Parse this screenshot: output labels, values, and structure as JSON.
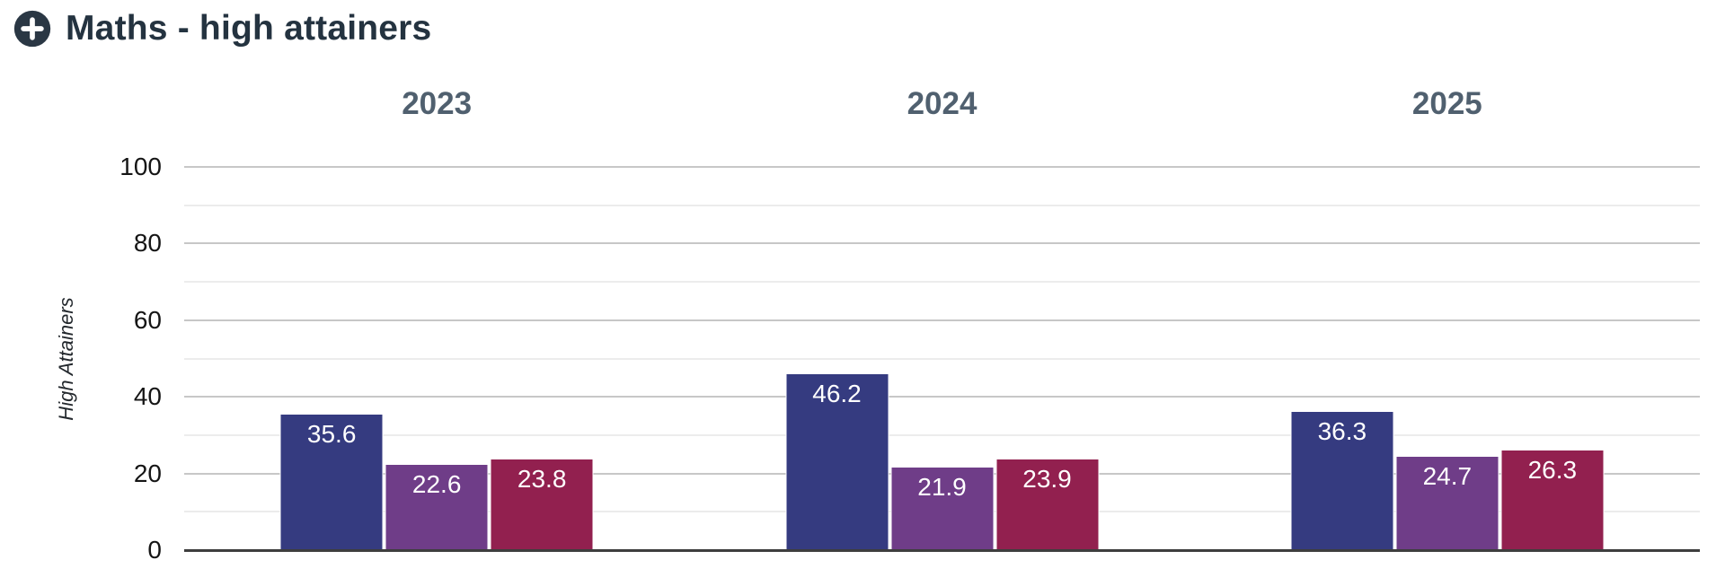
{
  "header": {
    "title": "Maths - high attainers",
    "icon": "plus-circle-icon",
    "icon_color": "#2a3744"
  },
  "chart_data": {
    "type": "bar",
    "title": "Maths - high attainers",
    "group_labels": [
      "2023",
      "2024",
      "2025"
    ],
    "series": [
      {
        "color": "#353b80",
        "values": [
          35.6,
          46.2,
          36.3
        ]
      },
      {
        "color": "#6f3d88",
        "values": [
          22.6,
          21.9,
          24.7
        ]
      },
      {
        "color": "#92204f",
        "values": [
          23.8,
          23.9,
          26.3
        ]
      }
    ],
    "value_labels": [
      [
        "35.6",
        "46.2",
        "36.3"
      ],
      [
        "22.6",
        "21.9",
        "24.7"
      ],
      [
        "23.8",
        "23.9",
        "26.3"
      ]
    ],
    "ylabel": "High Attainers",
    "ylim": [
      0,
      100
    ],
    "ytick_labels": [
      "0",
      "20",
      "40",
      "60",
      "80",
      "100"
    ],
    "gridline_step": 10,
    "labeled_tick_step": 20,
    "grid": true,
    "legend": false,
    "value_label_color": "#ffffff",
    "style": {
      "major_gridline_color": "#c7c7c7",
      "minor_gridline_color": "#ececec",
      "baseline_color": "#3e3e3e",
      "year_label_color": "#50606f",
      "title_color": "#243340"
    }
  }
}
